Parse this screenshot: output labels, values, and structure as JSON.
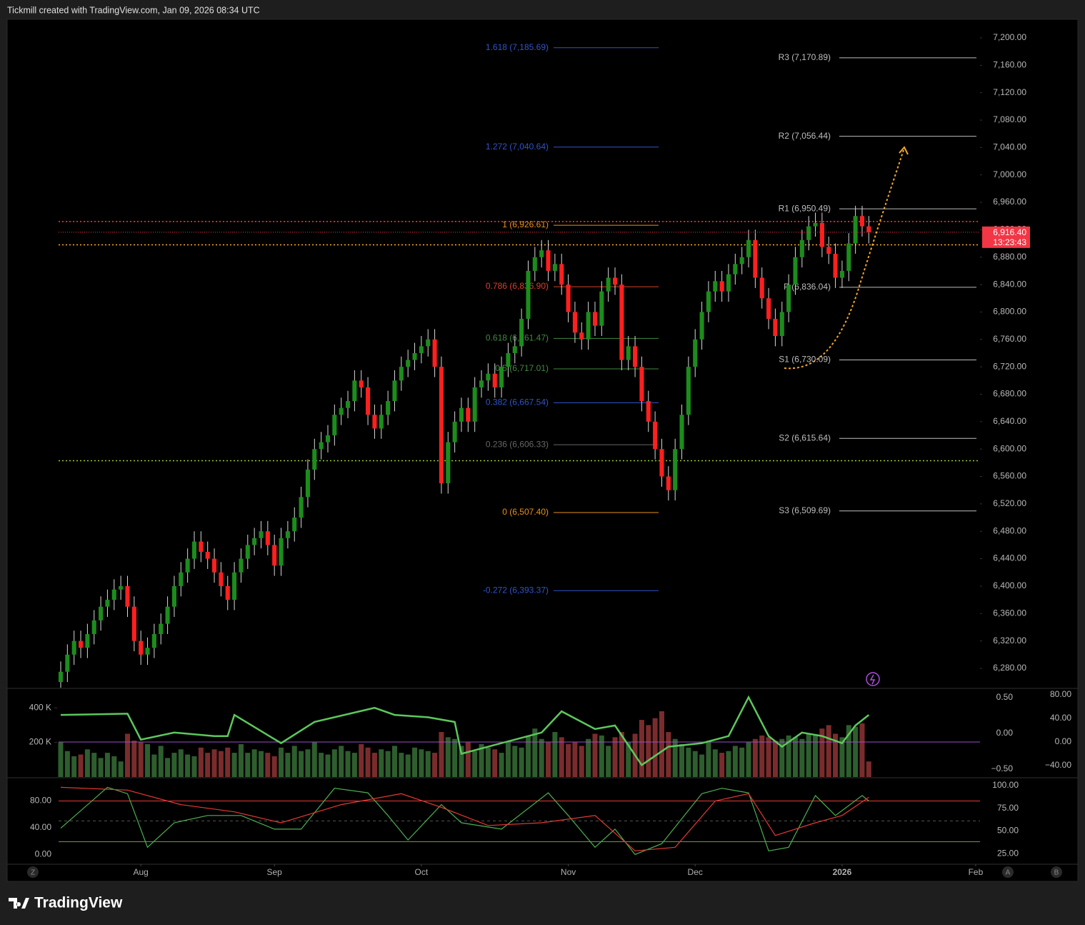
{
  "header": {
    "title": "Tickmill created with TradingView.com, Jan 09, 2026 08:34 UTC"
  },
  "footer": {
    "logo": "TradingView",
    "buttons": [
      "Z",
      "A",
      "B"
    ]
  },
  "chart_data": [
    {
      "type": "candlestick",
      "up_color": "#1c8c1c",
      "down_color": "#ff1f1f",
      "open": [
        6260,
        6275,
        6300,
        6320,
        6310,
        6330,
        6350,
        6370,
        6380,
        6395,
        6400,
        6370,
        6320,
        6300,
        6310,
        6330,
        6345,
        6370,
        6400,
        6420,
        6440,
        6465,
        6450,
        6440,
        6420,
        6400,
        6380,
        6420,
        6440,
        6460,
        6470,
        6480,
        6460,
        6430,
        6470,
        6480,
        6500,
        6530,
        6570,
        6600,
        6610,
        6620,
        6650,
        6660,
        6670,
        6700,
        6690,
        6650,
        6630,
        6650,
        6670,
        6700,
        6720,
        6730,
        6740,
        6750,
        6760,
        6720,
        6550,
        6610,
        6640,
        6660,
        6640,
        6690,
        6700,
        6710,
        6690,
        6720,
        6740,
        6750,
        6790,
        6860,
        6880,
        6890,
        6860,
        6870,
        6840,
        6800,
        6770,
        6760,
        6800,
        6780,
        6830,
        6850,
        6840,
        6730,
        6750,
        6720,
        6670,
        6640,
        6600,
        6560,
        6540,
        6600,
        6650,
        6720,
        6760,
        6800,
        6830,
        6845,
        6830,
        6855,
        6870,
        6880,
        6905,
        6850,
        6820,
        6790,
        6765,
        6800,
        6840,
        6880,
        6905,
        6925,
        6930,
        6895,
        6885,
        6850,
        6860,
        6900,
        6940,
        6925
      ],
      "high": [
        6290,
        6315,
        6335,
        6335,
        6345,
        6365,
        6385,
        6395,
        6410,
        6415,
        6415,
        6385,
        6335,
        6325,
        6345,
        6360,
        6385,
        6415,
        6435,
        6455,
        6480,
        6480,
        6465,
        6455,
        6435,
        6415,
        6435,
        6455,
        6475,
        6485,
        6495,
        6495,
        6475,
        6485,
        6495,
        6515,
        6545,
        6585,
        6615,
        6625,
        6635,
        6665,
        6675,
        6685,
        6715,
        6715,
        6705,
        6665,
        6665,
        6685,
        6715,
        6735,
        6745,
        6755,
        6765,
        6775,
        6775,
        6735,
        6625,
        6655,
        6675,
        6675,
        6705,
        6715,
        6725,
        6725,
        6735,
        6755,
        6765,
        6805,
        6875,
        6895,
        6905,
        6905,
        6885,
        6885,
        6855,
        6815,
        6785,
        6815,
        6815,
        6845,
        6865,
        6865,
        6855,
        6765,
        6765,
        6735,
        6685,
        6655,
        6615,
        6575,
        6615,
        6665,
        6735,
        6775,
        6815,
        6845,
        6860,
        6860,
        6870,
        6885,
        6895,
        6920,
        6920,
        6865,
        6835,
        6805,
        6815,
        6855,
        6895,
        6920,
        6940,
        6945,
        6945,
        6910,
        6900,
        6875,
        6915,
        6955,
        6955,
        6940
      ],
      "low": [
        6245,
        6260,
        6285,
        6295,
        6295,
        6315,
        6335,
        6355,
        6365,
        6380,
        6355,
        6305,
        6285,
        6285,
        6295,
        6315,
        6330,
        6355,
        6385,
        6405,
        6425,
        6435,
        6425,
        6405,
        6385,
        6365,
        6365,
        6405,
        6425,
        6445,
        6455,
        6445,
        6415,
        6415,
        6455,
        6465,
        6485,
        6515,
        6555,
        6585,
        6595,
        6605,
        6635,
        6645,
        6655,
        6675,
        6635,
        6615,
        6615,
        6635,
        6655,
        6685,
        6705,
        6715,
        6725,
        6735,
        6705,
        6535,
        6535,
        6595,
        6625,
        6625,
        6625,
        6675,
        6685,
        6675,
        6675,
        6705,
        6725,
        6735,
        6775,
        6845,
        6865,
        6845,
        6845,
        6825,
        6785,
        6755,
        6745,
        6745,
        6765,
        6765,
        6815,
        6825,
        6715,
        6715,
        6705,
        6655,
        6625,
        6585,
        6545,
        6525,
        6525,
        6585,
        6635,
        6705,
        6745,
        6785,
        6815,
        6815,
        6815,
        6840,
        6855,
        6865,
        6835,
        6805,
        6775,
        6750,
        6750,
        6785,
        6825,
        6865,
        6890,
        6910,
        6880,
        6870,
        6835,
        6835,
        6845,
        6885,
        6910,
        6900
      ],
      "close": [
        6275,
        6300,
        6320,
        6310,
        6330,
        6350,
        6370,
        6380,
        6395,
        6400,
        6370,
        6320,
        6300,
        6310,
        6330,
        6345,
        6370,
        6400,
        6420,
        6440,
        6465,
        6450,
        6440,
        6420,
        6400,
        6380,
        6420,
        6440,
        6460,
        6470,
        6480,
        6460,
        6430,
        6470,
        6480,
        6500,
        6530,
        6570,
        6600,
        6610,
        6620,
        6650,
        6660,
        6670,
        6700,
        6690,
        6650,
        6630,
        6650,
        6670,
        6700,
        6720,
        6730,
        6740,
        6750,
        6760,
        6720,
        6550,
        6610,
        6640,
        6660,
        6640,
        6690,
        6700,
        6710,
        6690,
        6720,
        6740,
        6750,
        6790,
        6860,
        6880,
        6890,
        6860,
        6870,
        6840,
        6800,
        6770,
        6760,
        6800,
        6780,
        6830,
        6850,
        6840,
        6730,
        6750,
        6720,
        6670,
        6640,
        6600,
        6560,
        6540,
        6600,
        6650,
        6720,
        6760,
        6800,
        6830,
        6845,
        6830,
        6855,
        6870,
        6880,
        6905,
        6850,
        6820,
        6790,
        6765,
        6800,
        6840,
        6880,
        6905,
        6925,
        6930,
        6895,
        6885,
        6850,
        6860,
        6900,
        6940,
        6925,
        6916.4
      ],
      "xlim": [
        -0.32,
        137.65
      ],
      "xticks": [
        {
          "value": 12,
          "label": "Aug"
        },
        {
          "value": 32,
          "label": "Sep"
        },
        {
          "value": 54,
          "label": "Oct"
        },
        {
          "value": 76,
          "label": "Nov"
        },
        {
          "value": 95,
          "label": "Dec"
        },
        {
          "value": 117,
          "label": "2026"
        },
        {
          "value": 137,
          "label": "Feb"
        }
      ],
      "ylim": [
        6251.8,
        7227.1
      ],
      "yticks": [
        {
          "value": 7200,
          "label": "7,200.00"
        },
        {
          "value": 7160,
          "label": "7,160.00"
        },
        {
          "value": 7120,
          "label": "7,120.00"
        },
        {
          "value": 7080,
          "label": "7,080.00"
        },
        {
          "value": 7040,
          "label": "7,040.00"
        },
        {
          "value": 7000,
          "label": "7,000.00"
        },
        {
          "value": 6960,
          "label": "6,960.00"
        },
        {
          "value": 6920,
          "label": "6,920.00"
        },
        {
          "value": 6880,
          "label": "6,880.00"
        },
        {
          "value": 6840,
          "label": "6,840.00"
        },
        {
          "value": 6800,
          "label": "6,800.00"
        },
        {
          "value": 6760,
          "label": "6,760.00"
        },
        {
          "value": 6720,
          "label": "6,720.00"
        },
        {
          "value": 6680,
          "label": "6,680.00"
        },
        {
          "value": 6640,
          "label": "6,640.00"
        },
        {
          "value": 6600,
          "label": "6,600.00"
        },
        {
          "value": 6560,
          "label": "6,560.00"
        },
        {
          "value": 6520,
          "label": "6,520.00"
        },
        {
          "value": 6480,
          "label": "6,480.00"
        },
        {
          "value": 6440,
          "label": "6,440.00"
        },
        {
          "value": 6400,
          "label": "6,400.00"
        },
        {
          "value": 6360,
          "label": "6,360.00"
        },
        {
          "value": 6320,
          "label": "6,320.00"
        },
        {
          "value": 6280,
          "label": "6,280.00"
        }
      ],
      "fib_levels": [
        {
          "label": "1.618 (7,185.69)",
          "value": 7185.69,
          "color": "#2f54c8"
        },
        {
          "label": "1.272 (7,040.64)",
          "value": 7040.64,
          "color": "#2f54c8"
        },
        {
          "label": "1 (6,926.61)",
          "value": 6926.61,
          "color": "#e8901c"
        },
        {
          "label": "0.786 (6,836.90)",
          "value": 6836.9,
          "color": "#d8402c"
        },
        {
          "label": "0.618 (6,761.47)",
          "value": 6761.47,
          "color": "#3f8a3f"
        },
        {
          "label": "0.5 (6,717.01)",
          "value": 6717.01,
          "color": "#3f8a3f"
        },
        {
          "label": "0.382 (6,667.54)",
          "value": 6667.54,
          "color": "#2f54c8"
        },
        {
          "label": "0.236 (6,606.33)",
          "value": 6606.33,
          "color": "#666666"
        },
        {
          "label": "0 (6,507.40)",
          "value": 6507.4,
          "color": "#e8901c"
        },
        {
          "label": "-0.272 (6,393.37)",
          "value": 6393.37,
          "color": "#2f54c8"
        }
      ],
      "pivots": [
        {
          "label": "R3 (7,170.89)",
          "value": 7170.89
        },
        {
          "label": "R2 (7,056.44)",
          "value": 7056.44
        },
        {
          "label": "R1 (6,950.49)",
          "value": 6950.49
        },
        {
          "label": "P (6,836.04)",
          "value": 6836.04
        },
        {
          "label": "S1 (6,730.09)",
          "value": 6730.09
        },
        {
          "label": "S2 (6,615.64)",
          "value": 6615.64
        },
        {
          "label": "S3 (6,509.69)",
          "value": 6509.69
        }
      ],
      "levels": [
        {
          "value": 6932,
          "color": "#ff3b3b"
        },
        {
          "value": 6898,
          "color": "#ffb020"
        },
        {
          "value": 6583,
          "color": "#9acd32"
        }
      ],
      "last_price": {
        "value": 6916.4,
        "label": "6,916.40",
        "countdown": "13:23:43",
        "color": "#f23645"
      }
    },
    {
      "type": "bar",
      "values": [
        200000,
        150000,
        120000,
        130000,
        160000,
        140000,
        110000,
        140000,
        120000,
        90000,
        250000,
        210000,
        200000,
        190000,
        130000,
        180000,
        110000,
        140000,
        160000,
        130000,
        120000,
        170000,
        140000,
        160000,
        150000,
        170000,
        140000,
        190000,
        140000,
        160000,
        150000,
        140000,
        120000,
        170000,
        140000,
        180000,
        150000,
        160000,
        200000,
        140000,
        130000,
        160000,
        180000,
        150000,
        140000,
        190000,
        170000,
        140000,
        160000,
        150000,
        180000,
        140000,
        130000,
        170000,
        160000,
        150000,
        140000,
        260000,
        230000,
        220000,
        180000,
        200000,
        150000,
        190000,
        170000,
        160000,
        140000,
        200000,
        180000,
        170000,
        240000,
        280000,
        220000,
        200000,
        260000,
        230000,
        190000,
        200000,
        180000,
        220000,
        250000,
        240000,
        180000,
        230000,
        260000,
        200000,
        250000,
        330000,
        300000,
        340000,
        380000,
        260000,
        220000,
        190000,
        170000,
        150000,
        130000,
        200000,
        160000,
        140000,
        150000,
        180000,
        170000,
        200000,
        220000,
        240000,
        230000,
        210000,
        220000,
        240000,
        230000,
        220000,
        250000,
        240000,
        280000,
        300000,
        250000,
        230000,
        300000,
        290000,
        310000,
        90000
      ],
      "up_color": "#2e5e2e",
      "down_color": "#7a2c2c",
      "ylim": [
        0,
        508000
      ],
      "yticks": [
        {
          "value": 400000,
          "label": "400 K"
        },
        {
          "value": 200000,
          "label": "200 K"
        }
      ]
    },
    {
      "type": "line",
      "color": "#5cc85c",
      "x": [
        0,
        10,
        12,
        17,
        23,
        25,
        26,
        33,
        38,
        47,
        50,
        55,
        59,
        60,
        66,
        72,
        75,
        80,
        83,
        87,
        91,
        96,
        100,
        103,
        106,
        108,
        111,
        114,
        117,
        119,
        121
      ],
      "values": [
        46,
        48,
        4,
        16,
        10,
        10,
        46,
        -2,
        34,
        58,
        46,
        42,
        34,
        -20,
        -2,
        16,
        52,
        22,
        28,
        -39,
        -8,
        -2,
        10,
        76,
        10,
        -8,
        16,
        10,
        -2,
        28,
        46
      ],
      "ylim": [
        -59.4,
        89.7
      ],
      "yticks": [
        {
          "value": 80,
          "label": "80.00"
        },
        {
          "value": 40,
          "label": "40.00"
        },
        {
          "value": 0,
          "label": "0.00"
        },
        {
          "value": -40,
          "label": "−40.00"
        }
      ],
      "y2lim": [
        -0.61,
        0.62
      ],
      "y2ticks": [
        {
          "value": 0.5,
          "label": "0.50"
        },
        {
          "value": 0,
          "label": "0.00"
        },
        {
          "value": -0.5,
          "label": "−0.50"
        }
      ],
      "levels": [
        {
          "value": 0,
          "color": "#9c4dcc"
        }
      ]
    },
    {
      "type": "line",
      "series": [
        {
          "name": "%K",
          "color": "#4caf50",
          "axis": "y",
          "x": [
            0,
            7,
            10,
            13,
            17,
            22,
            27,
            32,
            36,
            41,
            46,
            49,
            52,
            57,
            60,
            66,
            73,
            76,
            80,
            83,
            86,
            90,
            96,
            99,
            103,
            106,
            109,
            113,
            116,
            120,
            121
          ],
          "values": [
            53,
            98,
            91,
            32,
            59,
            67,
            67,
            52,
            52,
            97,
            92,
            67,
            40,
            79,
            59,
            52,
            92,
            67,
            32,
            52,
            24,
            36,
            91,
            97,
            92,
            28,
            32,
            89,
            67,
            89,
            83
          ]
        },
        {
          "name": "%D",
          "color": "#e53935",
          "axis": "y",
          "x": [
            0,
            10,
            18,
            26,
            33,
            42,
            51,
            57,
            64,
            72,
            80,
            86,
            92,
            98,
            103,
            107,
            113,
            117,
            121
          ],
          "values": [
            98,
            95,
            79,
            71,
            59,
            79,
            91,
            76,
            56,
            59,
            67,
            28,
            32,
            83,
            91,
            45,
            59,
            67,
            87
          ]
        }
      ],
      "ylim": [
        14.1,
        107.8
      ],
      "yticks": [
        {
          "value": 100,
          "label": "100.00"
        },
        {
          "value": 75,
          "label": "75.00"
        },
        {
          "value": 50,
          "label": "50.00"
        },
        {
          "value": 25,
          "label": "25.00"
        }
      ],
      "y2lim": [
        -13.7,
        113.7
      ],
      "y2ticks": [
        {
          "value": 80,
          "label": "80.00"
        },
        {
          "value": 40,
          "label": "40.00"
        },
        {
          "value": 0,
          "label": "0.00"
        }
      ],
      "levels": [
        {
          "value": 80,
          "axis": "y2",
          "color": "#e53935"
        },
        {
          "value": 18.9,
          "axis": "y2",
          "color": "#6a9a3a"
        },
        {
          "value": 61,
          "axis": "y",
          "color": "#555555"
        }
      ]
    }
  ]
}
